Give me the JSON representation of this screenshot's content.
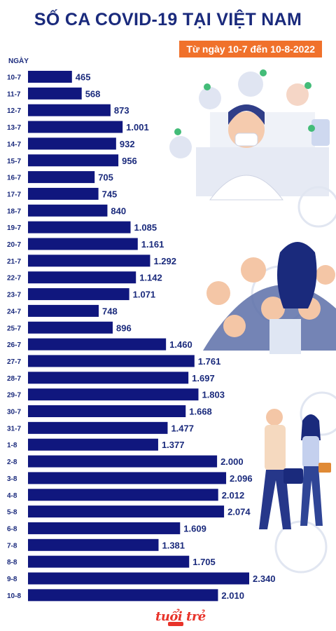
{
  "title": "SỐ CA COVID-19 TẠI VIỆT NAM",
  "subtitle": "Từ ngày 10-7 đến 10-8-2022",
  "logo_text": "tuổi trẻ",
  "colors": {
    "title": "#1a2a7c",
    "bar": "#10177e",
    "badge": "#f0712b",
    "logo": "#e8332a"
  },
  "chart_data": {
    "type": "bar",
    "orientation": "horizontal",
    "ylabel": "NGÀY",
    "xlim": [
      0,
      2340
    ],
    "grid": false,
    "categories": [
      "10-7",
      "11-7",
      "12-7",
      "13-7",
      "14-7",
      "15-7",
      "16-7",
      "17-7",
      "18-7",
      "19-7",
      "20-7",
      "21-7",
      "22-7",
      "23-7",
      "24-7",
      "25-7",
      "26-7",
      "27-7",
      "28-7",
      "29-7",
      "30-7",
      "31-7",
      "1-8",
      "2-8",
      "3-8",
      "4-8",
      "5-8",
      "6-8",
      "7-8",
      "8-8",
      "9-8",
      "10-8"
    ],
    "values": [
      465,
      568,
      873,
      1001,
      932,
      956,
      705,
      745,
      840,
      1085,
      1161,
      1292,
      1142,
      1071,
      748,
      896,
      1460,
      1761,
      1697,
      1803,
      1668,
      1477,
      1377,
      2000,
      2096,
      2012,
      2074,
      1609,
      1381,
      1705,
      2340,
      2010
    ],
    "value_labels": [
      "465",
      "568",
      "873",
      "1.001",
      "932",
      "956",
      "705",
      "745",
      "840",
      "1.085",
      "1.161",
      "1.292",
      "1.142",
      "1.071",
      "748",
      "896",
      "1.460",
      "1.761",
      "1.697",
      "1.803",
      "1.668",
      "1.477",
      "1.377",
      "2.000",
      "2.096",
      "2.012",
      "2.074",
      "1.609",
      "1.381",
      "1.705",
      "2.340",
      "2.010"
    ]
  }
}
